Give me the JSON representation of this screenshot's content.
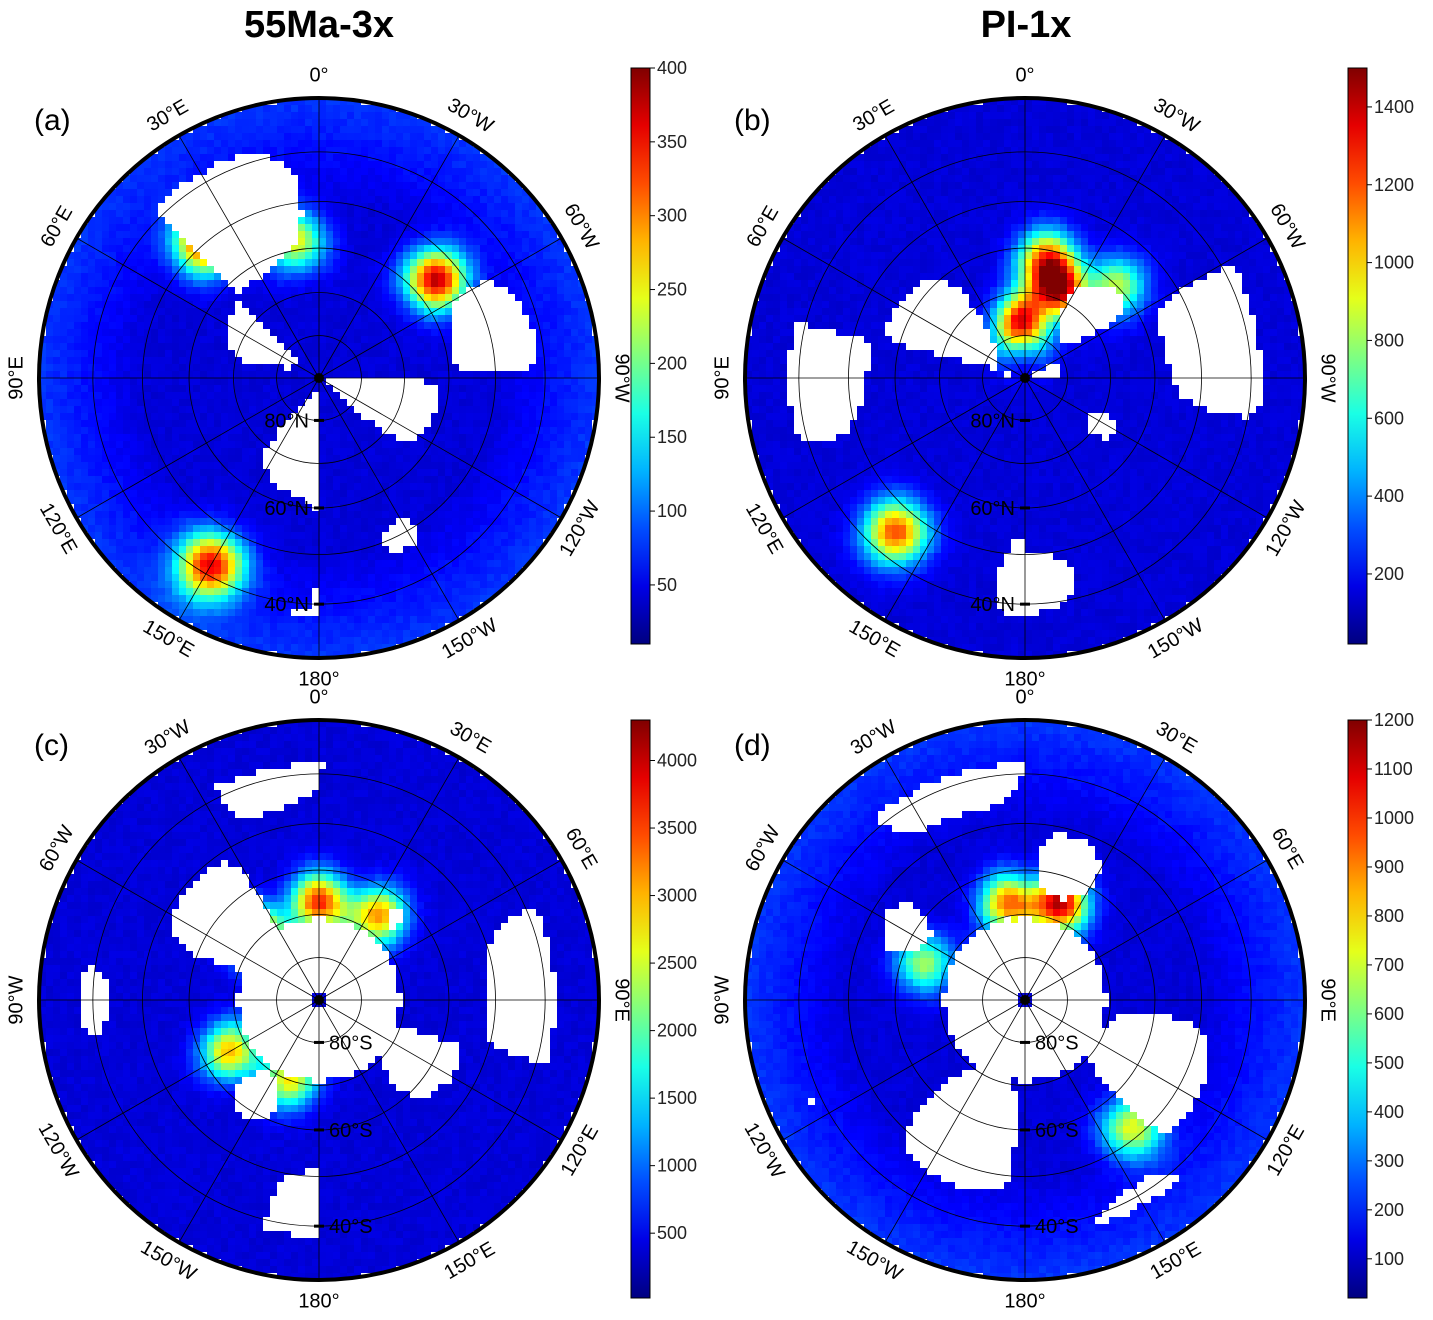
{
  "titles": {
    "left": "55Ma-3x",
    "right": "PI-1x"
  },
  "chart_data": [
    {
      "type": "heatmap",
      "panel": "(a)",
      "projection": "north-polar-stereographic",
      "lon_labels": [
        "0°",
        "30°W",
        "60°W",
        "90°W",
        "120°W",
        "150°W",
        "180°",
        "150°E",
        "120°E",
        "90°E",
        "60°E",
        "30°E"
      ],
      "lat_labels": [
        "80°N",
        "60°N",
        "40°N"
      ],
      "colorbar": {
        "ticks": [
          "50",
          "100",
          "150",
          "200",
          "250",
          "300",
          "350",
          "400"
        ],
        "range": [
          10,
          400
        ]
      },
      "hotspots": [
        {
          "lon": 40,
          "lat": 50,
          "value": 360
        },
        {
          "lon": -50,
          "lat": 55,
          "value": 380
        },
        {
          "lon": 10,
          "lat": 58,
          "value": 240
        },
        {
          "lon": 150,
          "lat": 42,
          "value": 350
        }
      ]
    },
    {
      "type": "heatmap",
      "panel": "(b)",
      "projection": "north-polar-stereographic",
      "lon_labels": [
        "0°",
        "30°W",
        "60°W",
        "90°W",
        "120°W",
        "150°W",
        "180°",
        "150°E",
        "120°E",
        "90°E",
        "60°E",
        "30°E"
      ],
      "lat_labels": [
        "80°N",
        "60°N",
        "40°N"
      ],
      "colorbar": {
        "ticks": [
          "200",
          "400",
          "600",
          "800",
          "1000",
          "1200",
          "1400"
        ],
        "range": [
          20,
          1500
        ]
      },
      "hotspots": [
        {
          "lon": -20,
          "lat": 68,
          "value": 1350
        },
        {
          "lon": -10,
          "lat": 62,
          "value": 1100
        },
        {
          "lon": 5,
          "lat": 77,
          "value": 1300
        },
        {
          "lon": -45,
          "lat": 60,
          "value": 800
        },
        {
          "lon": 140,
          "lat": 45,
          "value": 1200
        }
      ]
    },
    {
      "type": "heatmap",
      "panel": "(c)",
      "projection": "south-polar-stereographic",
      "lon_labels": [
        "0°",
        "30°E",
        "60°E",
        "90°E",
        "120°E",
        "150°E",
        "180°",
        "150°W",
        "120°W",
        "90°W",
        "60°W",
        "30°W"
      ],
      "lat_labels": [
        "80°S",
        "60°S",
        "40°S"
      ],
      "colorbar": {
        "ticks": [
          "500",
          "1000",
          "1500",
          "2000",
          "2500",
          "3000",
          "3500",
          "4000"
        ],
        "range": [
          20,
          4300
        ]
      },
      "hotspots": [
        {
          "lon": -45,
          "lat": -68,
          "value": 4200
        },
        {
          "lon": 0,
          "lat": -67,
          "value": 3600
        },
        {
          "lon": 35,
          "lat": -66,
          "value": 3100
        },
        {
          "lon": -120,
          "lat": -66,
          "value": 2900
        },
        {
          "lon": -160,
          "lat": -70,
          "value": 2600
        }
      ]
    },
    {
      "type": "heatmap",
      "panel": "(d)",
      "projection": "south-polar-stereographic",
      "lon_labels": [
        "0°",
        "30°E",
        "60°E",
        "90°E",
        "120°E",
        "150°E",
        "180°",
        "150°W",
        "120°W",
        "90°W",
        "60°W",
        "30°W"
      ],
      "lat_labels": [
        "80°S",
        "60°S",
        "40°S"
      ],
      "colorbar": {
        "ticks": [
          "100",
          "200",
          "300",
          "400",
          "500",
          "600",
          "700",
          "800",
          "900",
          "1000",
          "1100",
          "1200"
        ],
        "range": [
          20,
          1200
        ]
      },
      "hotspots": [
        {
          "lon": 20,
          "lat": -66,
          "value": 1150
        },
        {
          "lon": -10,
          "lat": -67,
          "value": 900
        },
        {
          "lon": 140,
          "lat": -52,
          "value": 700
        },
        {
          "lon": -70,
          "lat": -65,
          "value": 600
        }
      ]
    }
  ]
}
